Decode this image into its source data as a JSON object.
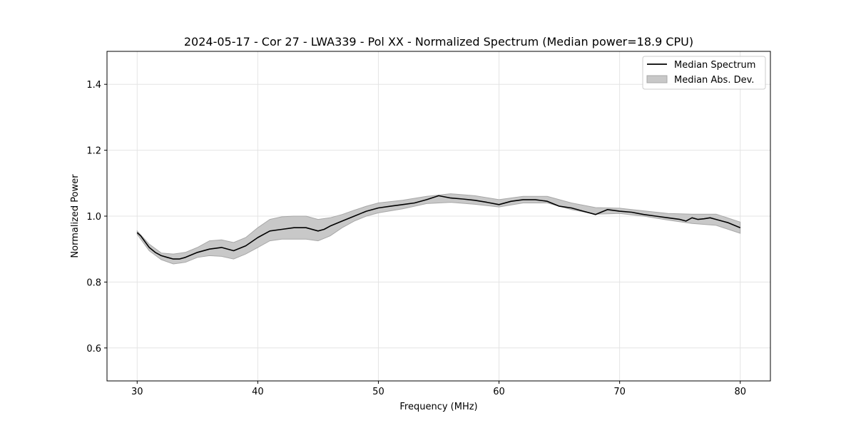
{
  "chart_data": {
    "type": "line",
    "title": "2024-05-17 - Cor 27 - LWA339 - Pol XX - Normalized Spectrum (Median power=18.9 CPU)",
    "xlabel": "Frequency (MHz)",
    "ylabel": "Normalized Power",
    "xlim": [
      27.5,
      82.5
    ],
    "ylim": [
      0.5,
      1.5
    ],
    "xticks": [
      30,
      40,
      50,
      60,
      70,
      80
    ],
    "yticks": [
      0.6,
      0.8,
      1.0,
      1.2,
      1.4
    ],
    "xtick_labels": [
      "30",
      "40",
      "50",
      "60",
      "70",
      "80"
    ],
    "ytick_labels": [
      "0.6",
      "0.8",
      "1.0",
      "1.2",
      "1.4"
    ],
    "grid": true,
    "legend_position": "top-right",
    "legend": {
      "median_label": "Median Spectrum",
      "mad_label": "Median Abs. Dev."
    },
    "colors": {
      "line": "#000000",
      "band_fill": "#c8c8c8",
      "band_edge": "#a8a8a8",
      "grid": "#e4e4e4"
    },
    "series": [
      {
        "name": "Median Spectrum",
        "x": [
          30,
          30.3,
          30.6,
          31,
          31.5,
          32,
          32.5,
          33,
          33.5,
          34,
          35,
          36,
          37,
          38,
          39,
          40,
          41,
          42,
          43,
          44,
          45,
          45.5,
          46,
          47,
          48,
          49,
          50,
          51,
          52,
          53,
          54,
          55,
          56,
          57,
          58,
          59,
          60,
          61,
          62,
          63,
          64,
          65,
          66,
          67,
          68,
          69,
          70,
          71,
          72,
          73,
          74,
          75,
          75.5,
          76,
          76.5,
          77,
          77.5,
          78,
          79,
          80
        ],
        "values": [
          0.95,
          0.94,
          0.925,
          0.905,
          0.89,
          0.88,
          0.875,
          0.87,
          0.87,
          0.875,
          0.89,
          0.9,
          0.905,
          0.895,
          0.91,
          0.935,
          0.955,
          0.96,
          0.965,
          0.965,
          0.955,
          0.96,
          0.97,
          0.985,
          1.0,
          1.015,
          1.025,
          1.03,
          1.035,
          1.04,
          1.05,
          1.062,
          1.055,
          1.052,
          1.048,
          1.042,
          1.035,
          1.045,
          1.05,
          1.05,
          1.045,
          1.03,
          1.025,
          1.015,
          1.005,
          1.02,
          1.015,
          1.012,
          1.005,
          1.0,
          0.995,
          0.99,
          0.985,
          0.995,
          0.99,
          0.992,
          0.995,
          0.99,
          0.98,
          0.965
        ]
      },
      {
        "name": "Median Abs. Dev.",
        "x": [
          30,
          31,
          32,
          33,
          34,
          35,
          36,
          37,
          38,
          39,
          40,
          41,
          42,
          43,
          44,
          45,
          46,
          47,
          48,
          49,
          50,
          52,
          54,
          56,
          58,
          60,
          62,
          64,
          66,
          68,
          70,
          72,
          74,
          76,
          78,
          80
        ],
        "lower": [
          0.945,
          0.895,
          0.868,
          0.855,
          0.86,
          0.875,
          0.88,
          0.878,
          0.87,
          0.885,
          0.905,
          0.925,
          0.93,
          0.93,
          0.93,
          0.925,
          0.94,
          0.965,
          0.985,
          1.0,
          1.01,
          1.022,
          1.038,
          1.042,
          1.036,
          1.028,
          1.04,
          1.04,
          1.02,
          1.006,
          1.008,
          1.0,
          0.988,
          0.978,
          0.972,
          0.948
        ],
        "upper": [
          0.955,
          0.915,
          0.888,
          0.885,
          0.89,
          0.905,
          0.925,
          0.928,
          0.92,
          0.935,
          0.965,
          0.99,
          0.998,
          1.0,
          1.0,
          0.99,
          0.995,
          1.005,
          1.018,
          1.03,
          1.04,
          1.048,
          1.06,
          1.068,
          1.062,
          1.05,
          1.06,
          1.06,
          1.04,
          1.026,
          1.024,
          1.016,
          1.008,
          1.006,
          1.006,
          0.982
        ]
      }
    ]
  }
}
